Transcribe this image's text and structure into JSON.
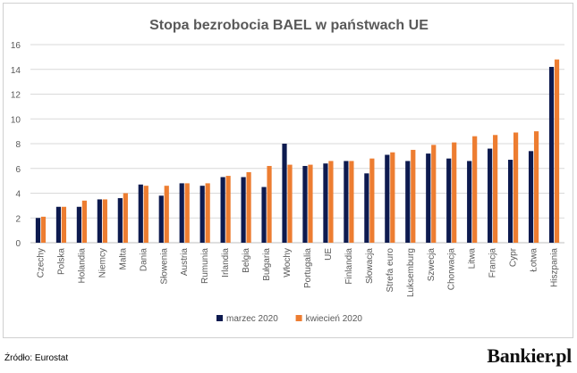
{
  "chart_data": {
    "type": "bar",
    "title": "Stopa bezrobocia BAEL w państwach UE",
    "xlabel": "",
    "ylabel": "",
    "ylim": [
      0,
      16
    ],
    "yticks": [
      0,
      2,
      4,
      6,
      8,
      10,
      12,
      14,
      16
    ],
    "grid": true,
    "legend_position": "bottom",
    "categories": [
      "Czechy",
      "Polska",
      "Holandia",
      "Niemcy",
      "Malta",
      "Dania",
      "Słowenia",
      "Austria",
      "Rumunia",
      "Irlandia",
      "Belgia",
      "Bułgaria",
      "Włochy",
      "Portugalia",
      "UE",
      "Finlandia",
      "Słowacja",
      "Strefa euro",
      "Luksemburg",
      "Szwecja",
      "Chorwacja",
      "Litwa",
      "Francja",
      "Cypr",
      "Łotwa",
      "Hiszpania"
    ],
    "series": [
      {
        "name": "marzec 2020",
        "color": "#0d1a4f",
        "values": [
          2.0,
          2.9,
          2.9,
          3.5,
          3.6,
          4.7,
          3.8,
          4.8,
          4.6,
          5.3,
          5.3,
          4.5,
          8.0,
          6.2,
          6.4,
          6.6,
          5.6,
          7.1,
          6.6,
          7.2,
          6.8,
          6.6,
          7.6,
          6.7,
          7.4,
          14.2
        ]
      },
      {
        "name": "kwiecień 2020",
        "color": "#ed7d31",
        "values": [
          2.1,
          2.9,
          3.4,
          3.5,
          4.0,
          4.6,
          4.6,
          4.8,
          4.8,
          5.4,
          5.7,
          6.2,
          6.3,
          6.3,
          6.6,
          6.6,
          6.8,
          7.3,
          7.5,
          7.9,
          8.1,
          8.6,
          8.7,
          8.9,
          9.0,
          14.8
        ]
      }
    ]
  },
  "footer": {
    "source": "Źródło: Eurostat",
    "brand": "Bankier.pl"
  }
}
